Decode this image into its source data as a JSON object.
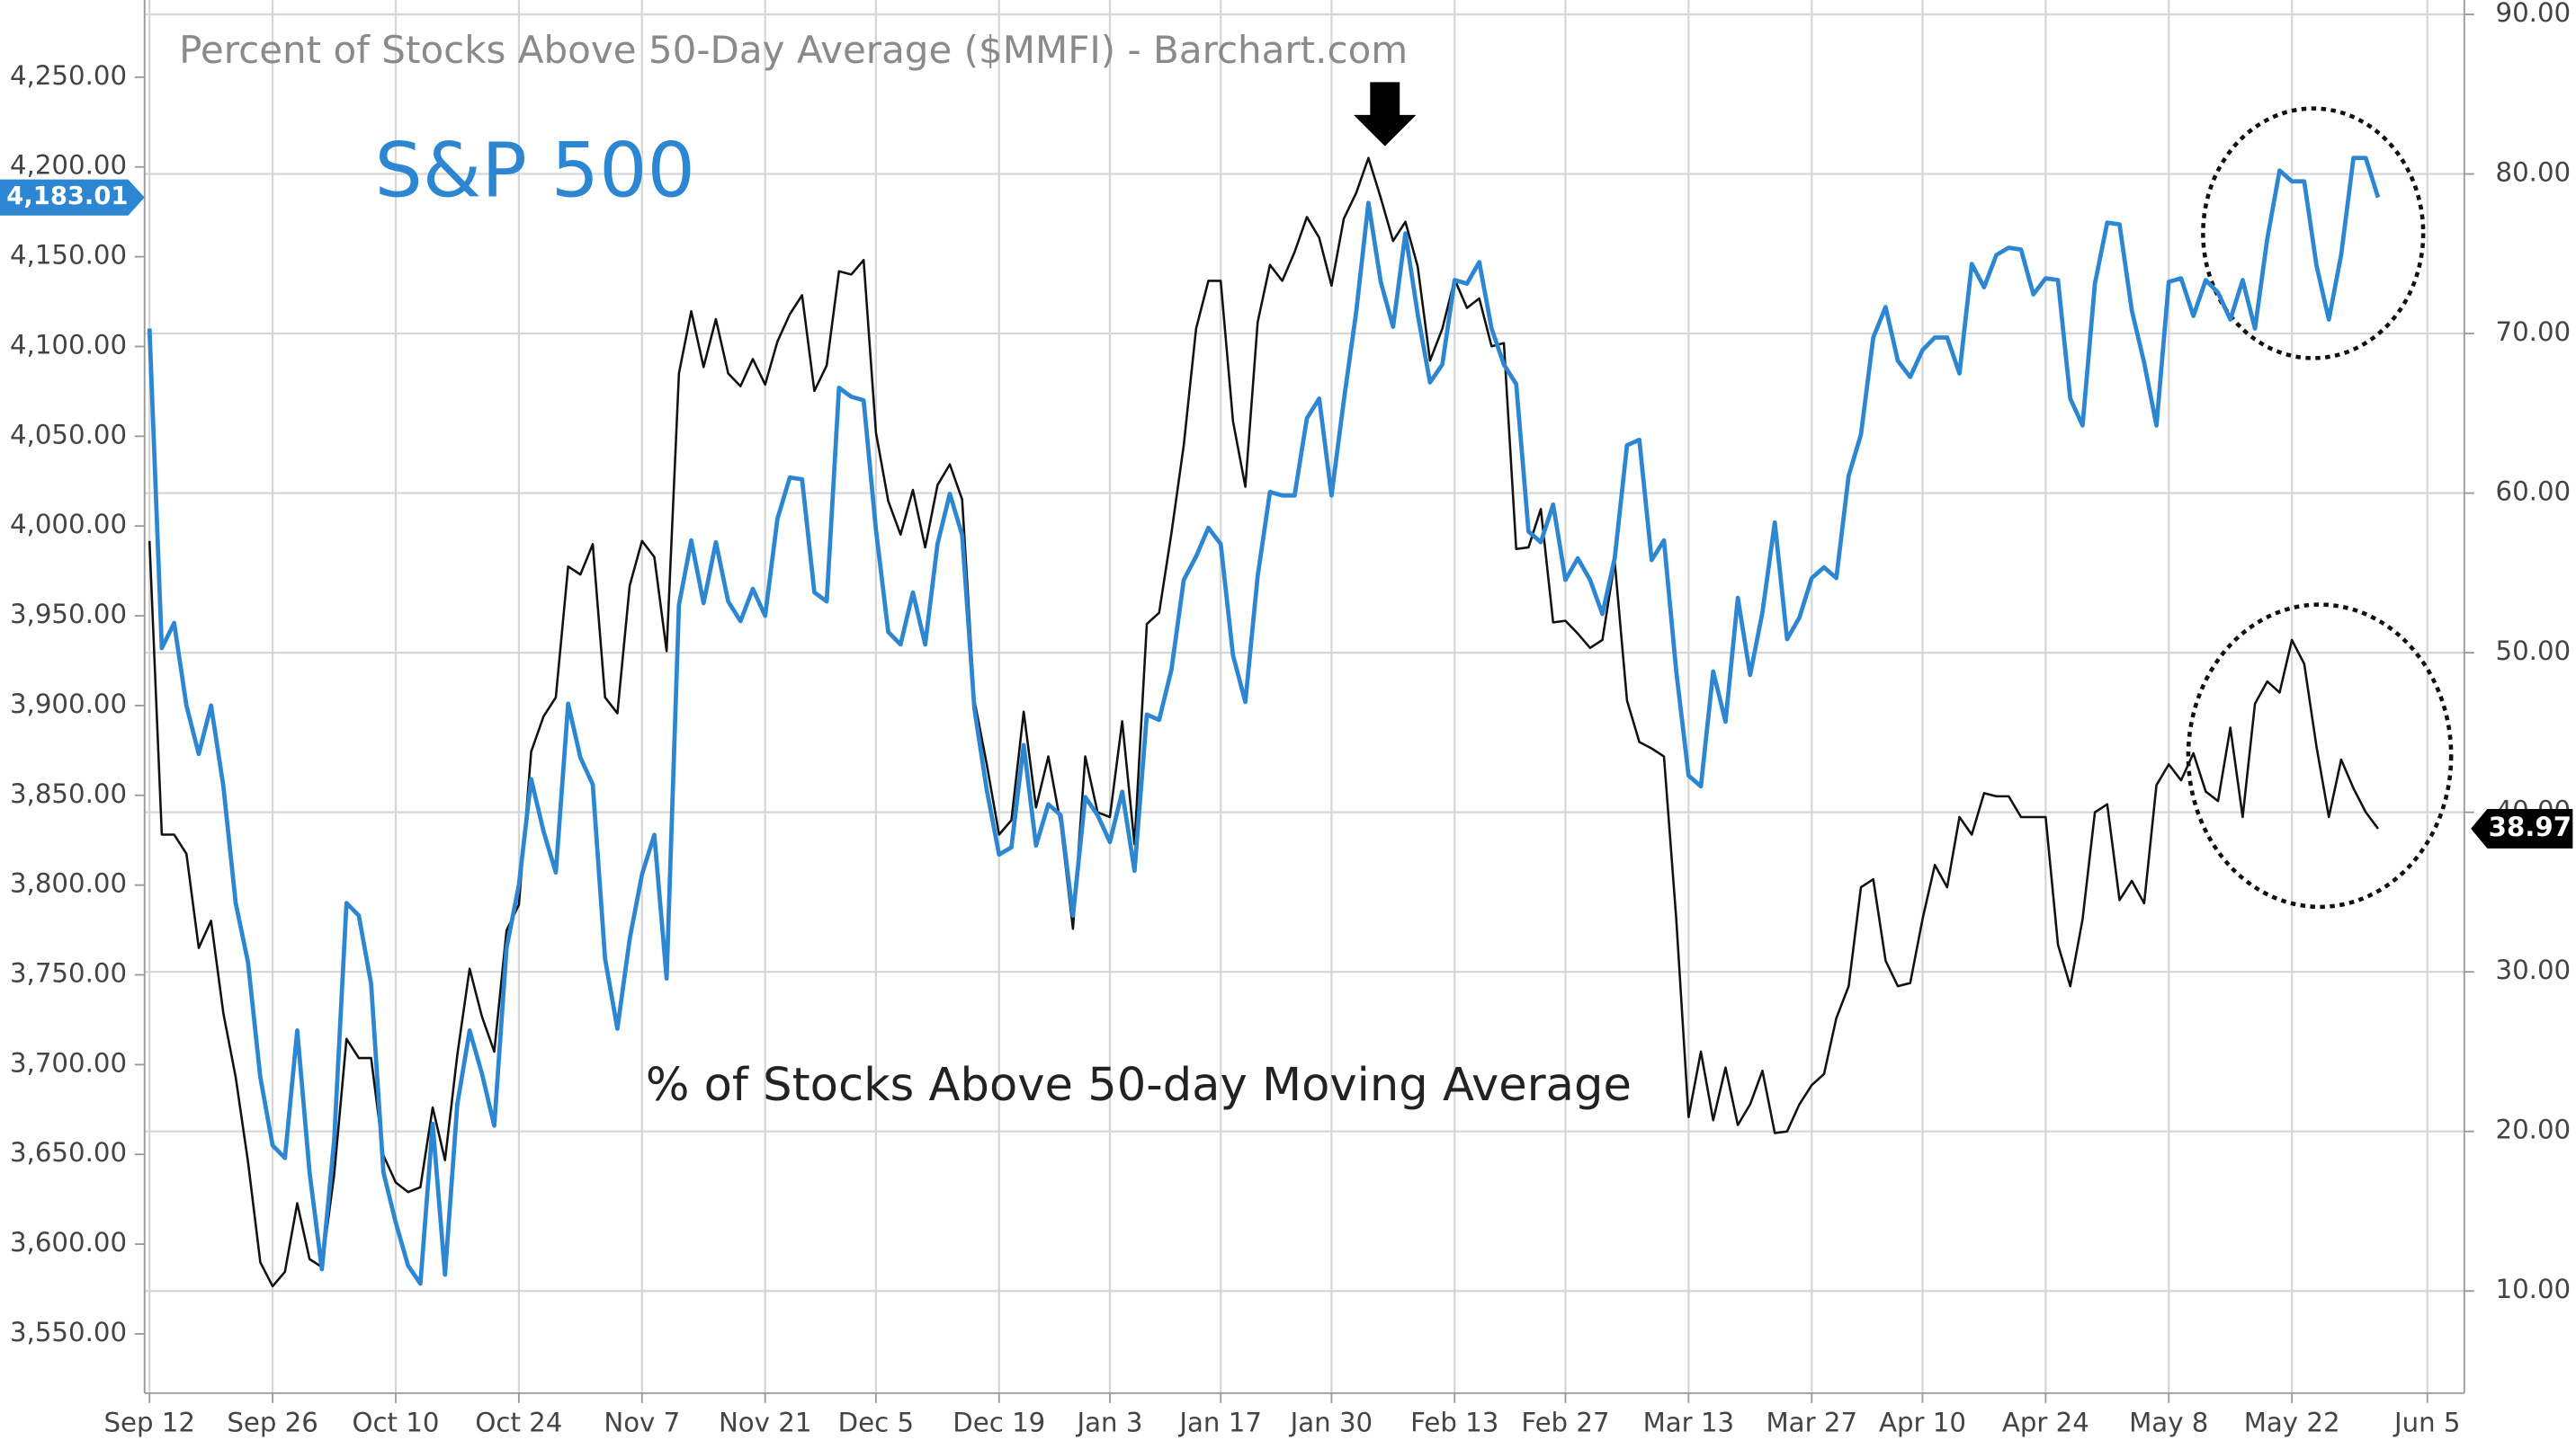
{
  "chart_data": {
    "type": "line",
    "title": "Percent of Stocks Above 50-Day Average ($MMFI) - Barchart.com",
    "x": [
      0,
      1,
      2,
      3,
      4,
      5,
      6,
      7,
      8,
      9,
      10,
      11,
      12,
      13,
      14,
      15,
      16,
      17,
      18,
      19,
      20,
      21,
      22,
      23,
      24,
      25,
      26,
      27,
      28,
      29,
      30,
      31,
      32,
      33,
      34,
      35,
      36,
      37,
      38,
      39,
      40,
      41,
      42,
      43,
      44,
      45,
      46,
      47,
      48,
      49,
      50,
      51,
      52,
      53,
      54,
      55,
      56,
      57,
      58,
      59,
      60,
      61,
      62,
      63,
      64,
      65,
      66,
      67,
      68,
      69,
      70,
      71,
      72,
      73,
      74,
      75,
      76,
      77,
      78,
      79,
      80,
      81,
      82,
      83,
      84,
      85,
      86,
      87,
      88,
      89,
      90,
      91,
      92,
      93,
      94,
      95,
      96,
      97,
      98,
      99,
      100,
      101,
      102,
      103,
      104,
      105,
      106,
      107,
      108,
      109,
      110,
      111,
      112,
      113,
      114,
      115,
      116,
      117,
      118,
      119,
      120,
      121,
      122,
      123,
      124,
      125,
      126,
      127,
      128,
      129,
      130,
      131,
      132,
      133,
      134,
      135,
      136,
      137,
      138,
      139,
      140,
      141,
      142,
      143,
      144,
      145,
      146,
      147,
      148,
      149,
      150,
      151,
      152,
      153,
      154,
      155,
      156,
      157,
      158,
      159,
      160,
      161,
      162,
      163,
      164,
      165,
      166,
      167,
      168,
      169,
      170,
      171,
      172,
      173,
      174,
      175,
      176,
      177,
      178,
      179,
      180,
      181
    ],
    "series": [
      {
        "name": "S&P 500",
        "color": "#2c86d1",
        "axis": "y",
        "values": [
          4110,
          3932,
          3946,
          3900,
          3873,
          3900,
          3855,
          3790,
          3757,
          3693,
          3655,
          3648,
          3719,
          3640,
          3586,
          3658,
          3790,
          3783,
          3745,
          3640,
          3612,
          3588,
          3578,
          3667,
          3583,
          3678,
          3719,
          3695,
          3666,
          3765,
          3800,
          3859,
          3830,
          3807,
          3901,
          3871,
          3856,
          3759,
          3720,
          3770,
          3806,
          3828,
          3748,
          3956,
          3992,
          3957,
          3991,
          3958,
          3947,
          3965,
          3950,
          4004,
          4027,
          4026,
          3963,
          3958,
          4077,
          4072,
          4070,
          3998,
          3941,
          3934,
          3963,
          3934,
          3990,
          4018,
          3995,
          3898,
          3853,
          3817,
          3821,
          3878,
          3822,
          3845,
          3839,
          3783,
          3849,
          3839,
          3824,
          3852,
          3808,
          3895,
          3892,
          3920,
          3970,
          3983,
          3999,
          3990,
          3928,
          3902,
          3972,
          4019,
          4017,
          4017,
          4060,
          4071,
          4017,
          4070,
          4119,
          4180,
          4136,
          4111,
          4163,
          4118,
          4080,
          4090,
          4137,
          4135,
          4147,
          4110,
          4090,
          4079,
          3997,
          3991,
          4012,
          3970,
          3982,
          3970,
          3951,
          3982,
          4045,
          4048,
          3981,
          3992,
          3919,
          3861,
          3855,
          3919,
          3891,
          3960,
          3917,
          3952,
          4002,
          3937,
          3949,
          3971,
          3977,
          3971,
          4028,
          4051,
          4105,
          4122,
          4092,
          4083,
          4098,
          4105,
          4105,
          4085,
          4146,
          4133,
          4151,
          4155,
          4154,
          4129,
          4138,
          4137,
          4071,
          4056,
          4135,
          4169,
          4168,
          4120,
          4091,
          4056,
          4136,
          4138,
          4117,
          4137,
          4130,
          4115,
          4137,
          4110,
          4160,
          4198,
          4192,
          4192,
          4145,
          4115,
          4151,
          4205,
          4205,
          4183.01
        ]
      },
      {
        "name": "% of Stocks Above 50-day Moving Average",
        "color": "#111111",
        "axis": "y2",
        "values": [
          57,
          38.6,
          38.6,
          37.4,
          31.5,
          33.2,
          27.4,
          23.4,
          18.1,
          11.8,
          10.3,
          11.2,
          15.5,
          12,
          11.5,
          17.3,
          25.8,
          24.6,
          24.6,
          18.5,
          16.8,
          16.2,
          16.5,
          21.5,
          18.2,
          24.8,
          30.2,
          27.2,
          25,
          32.6,
          34.2,
          43.8,
          46,
          47.2,
          55.4,
          54.9,
          56.8,
          47.2,
          46.2,
          54.2,
          57,
          56,
          50.1,
          67.5,
          71.4,
          67.9,
          70.9,
          67.5,
          66.7,
          68.4,
          66.8,
          69.5,
          71.2,
          72.4,
          66.4,
          68,
          73.9,
          73.7,
          74.6,
          63.8,
          59.5,
          57.4,
          60.2,
          56.6,
          60.5,
          61.8,
          59.6,
          47,
          43,
          38.6,
          39.5,
          46.3,
          40.3,
          43.5,
          39.3,
          32.7,
          43.5,
          40,
          39.7,
          45.7,
          38,
          51.8,
          52.5,
          57.5,
          63,
          70.3,
          73.3,
          73.3,
          64.5,
          60.4,
          70.7,
          74.3,
          73.3,
          75.1,
          77.3,
          76,
          73,
          77.2,
          78.8,
          81,
          78.5,
          75.8,
          77,
          74.2,
          68.3,
          70.3,
          73.4,
          71.6,
          72.2,
          69.2,
          69.4,
          56.5,
          56.6,
          59,
          51.9,
          52,
          51.2,
          50.3,
          50.8,
          55.7,
          47,
          44.4,
          44,
          43.5,
          33.3,
          20.9,
          25,
          20.7,
          24,
          20.4,
          21.7,
          23.8,
          19.9,
          20,
          21.7,
          22.9,
          23.6,
          27.1,
          29.1,
          35.3,
          35.8,
          30.7,
          29.1,
          29.3,
          33.3,
          36.7,
          35.3,
          39.7,
          38.6,
          41.2,
          41,
          41,
          39.7,
          39.7,
          39.7,
          31.7,
          29.1,
          33.3,
          40,
          40.5,
          34.5,
          35.7,
          34.3,
          41.7,
          43,
          42,
          43.7,
          41.3,
          40.7,
          45.3,
          39.7,
          46.8,
          48.2,
          47.5,
          50.8,
          49.3,
          44.1,
          39.7,
          43.3,
          41.5,
          40,
          38.97
        ]
      }
    ],
    "price_tags": [
      {
        "value": 4183.01,
        "label": "4,183.01",
        "axis": "y"
      },
      {
        "value": 38.97,
        "label": "38.97",
        "axis": "y2"
      }
    ],
    "xlim": [
      -0.4,
      188
    ],
    "xticks": [
      {
        "value": 0,
        "label": "Sep 12"
      },
      {
        "value": 10,
        "label": "Sep 26"
      },
      {
        "value": 20,
        "label": "Oct 10"
      },
      {
        "value": 30,
        "label": "Oct 24"
      },
      {
        "value": 40,
        "label": "Nov 7"
      },
      {
        "value": 50,
        "label": "Nov 21"
      },
      {
        "value": 59,
        "label": "Dec 5"
      },
      {
        "value": 69,
        "label": "Dec 19"
      },
      {
        "value": 78,
        "label": "Jan 3"
      },
      {
        "value": 87,
        "label": "Jan 17"
      },
      {
        "value": 96,
        "label": "Jan 30"
      },
      {
        "value": 106,
        "label": "Feb 13"
      },
      {
        "value": 115,
        "label": "Feb 27"
      },
      {
        "value": 125,
        "label": "Mar 13"
      },
      {
        "value": 135,
        "label": "Mar 27"
      },
      {
        "value": 144,
        "label": "Apr 10"
      },
      {
        "value": 154,
        "label": "Apr 24"
      },
      {
        "value": 164,
        "label": "May 8"
      },
      {
        "value": 174,
        "label": "May 22"
      },
      {
        "value": 185,
        "label": "Jun 5"
      }
    ],
    "ylim": [
      3517,
      4293
    ],
    "yticks": [
      {
        "value": 3550,
        "label": "3,550.00"
      },
      {
        "value": 3600,
        "label": "3,600.00"
      },
      {
        "value": 3650,
        "label": "3,650.00"
      },
      {
        "value": 3700,
        "label": "3,700.00"
      },
      {
        "value": 3750,
        "label": "3,750.00"
      },
      {
        "value": 3800,
        "label": "3,800.00"
      },
      {
        "value": 3850,
        "label": "3,850.00"
      },
      {
        "value": 3900,
        "label": "3,900.00"
      },
      {
        "value": 3950,
        "label": "3,950.00"
      },
      {
        "value": 4000,
        "label": "4,000.00"
      },
      {
        "value": 4050,
        "label": "4,050.00"
      },
      {
        "value": 4100,
        "label": "4,100.00"
      },
      {
        "value": 4150,
        "label": "4,150.00"
      },
      {
        "value": 4200,
        "label": "4,200.00"
      },
      {
        "value": 4250,
        "label": "4,250.00"
      }
    ],
    "y2lim": [
      3.6,
      90.9
    ],
    "y2ticks": [
      {
        "value": 10,
        "label": "10.00"
      },
      {
        "value": 20,
        "label": "20.00"
      },
      {
        "value": 30,
        "label": "30.00"
      },
      {
        "value": 40,
        "label": "40.00"
      },
      {
        "value": 50,
        "label": "50.00"
      },
      {
        "value": 60,
        "label": "60.00"
      },
      {
        "value": 70,
        "label": "70.00"
      },
      {
        "value": 80,
        "label": "80.00"
      },
      {
        "value": 90,
        "label": "90.00"
      }
    ],
    "grid": true
  }
}
